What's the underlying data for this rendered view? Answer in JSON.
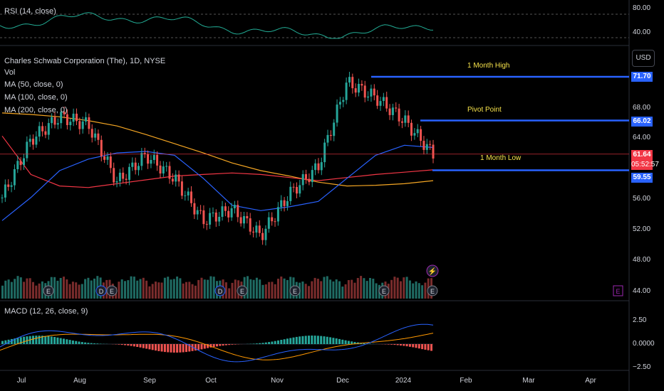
{
  "rsi": {
    "label": "RSI (14, close)",
    "levels": [
      "80.00",
      "40.00"
    ]
  },
  "main": {
    "title": "Charles Schwab Corporation (The), 1D, NYSE",
    "indicators": [
      "Vol",
      "MA (50, close, 0)",
      "MA (100, close, 0)",
      "MA (200, close, 0)"
    ],
    "currency": "USD",
    "price_axis": [
      "68.00",
      "64.00",
      "56.00",
      "52.00",
      "48.00",
      "44.00"
    ],
    "tags": [
      {
        "value": "71.70",
        "color": "#2962ff"
      },
      {
        "value": "66.02",
        "color": "#2962ff"
      },
      {
        "value": "61.64",
        "color": "#f23645"
      },
      {
        "value": "05:52:57",
        "color": "#f23645"
      },
      {
        "value": "59.55",
        "color": "#2962ff"
      }
    ],
    "annotations": [
      "1 Month High",
      "Pivot Point",
      "1 Month Low"
    ],
    "event_markers": [
      "E",
      "D",
      "E",
      "D",
      "E",
      "E",
      "E",
      "E"
    ]
  },
  "macd": {
    "label": "MACD (12, 26, close, 9)",
    "axis": [
      "2.50",
      "0.0000",
      "−2.50"
    ]
  },
  "time_axis": [
    "Jul",
    "Aug",
    "Sep",
    "Oct",
    "Nov",
    "Dec",
    "2024",
    "Feb",
    "Mar",
    "Apr"
  ],
  "colors": {
    "up": "#26a69a",
    "down": "#ef5350",
    "ma50": "#2962ff",
    "ma100": "#f23645",
    "ma200": "#f5a623",
    "level": "#2962ff",
    "rsi": "#22ab94",
    "annotation": "#f7e34b"
  },
  "chart_data": {
    "type": "candlestick",
    "dates": [
      "2023-07-01",
      "2023-07-13",
      "2023-07-27",
      "2023-08-10",
      "2023-08-24",
      "2023-09-07",
      "2023-09-21",
      "2023-10-05",
      "2023-10-19",
      "2023-11-02",
      "2023-11-16",
      "2023-11-30",
      "2023-12-14",
      "2023-12-28",
      "2024-01-11",
      "2024-01-17"
    ],
    "close": [
      56.0,
      63.5,
      66.5,
      65.5,
      58.0,
      61.5,
      58.5,
      53.0,
      54.5,
      51.0,
      56.5,
      60.0,
      71.0,
      69.0,
      66.0,
      61.64
    ],
    "ma50_approx": [
      53.0,
      56.0,
      59.5,
      61.0,
      61.8,
      62.0,
      61.5,
      58.5,
      55.0,
      54.3,
      54.8,
      55.5,
      58.5,
      61.5,
      62.8,
      62.5
    ],
    "ma100_approx": [
      64.0,
      59.0,
      57.5,
      57.3,
      57.8,
      58.3,
      58.8,
      59.0,
      59.2,
      59.0,
      58.6,
      58.2,
      58.6,
      59.0,
      59.3,
      59.6
    ],
    "ma200_approx": [
      67.0,
      66.8,
      66.5,
      66.0,
      65.3,
      64.2,
      63.0,
      61.8,
      60.5,
      59.5,
      58.8,
      58.0,
      57.5,
      57.6,
      57.8,
      58.2
    ],
    "levels": {
      "one_month_high": 71.7,
      "pivot_point": 66.02,
      "one_month_low": 59.55,
      "last": 61.64
    },
    "ylim": [
      44,
      72
    ]
  }
}
